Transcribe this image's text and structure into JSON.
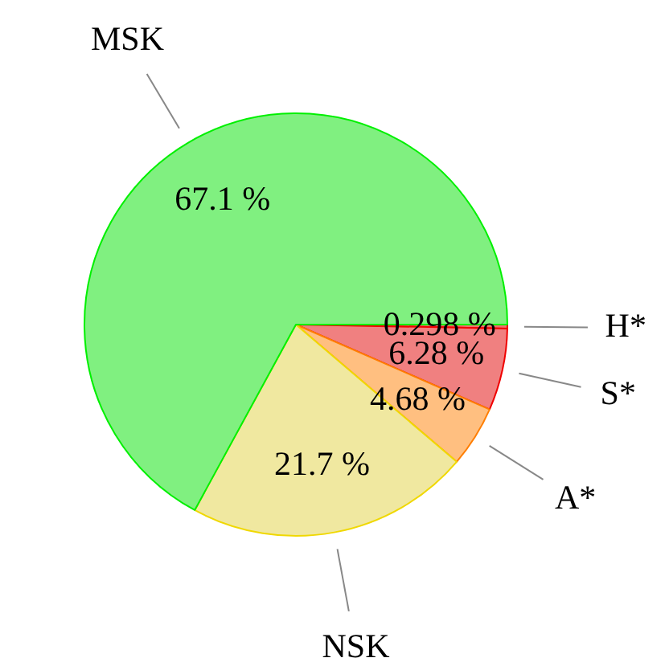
{
  "chart_data": {
    "type": "pie",
    "categories": [
      "H*",
      "S*",
      "A*",
      "NSK",
      "MSK"
    ],
    "values": [
      0.298,
      6.28,
      4.68,
      21.7,
      67.1
    ],
    "value_labels": [
      "0.298 %",
      "6.28 %",
      "4.68 %",
      "21.7 %",
      "67.1 %"
    ],
    "colors": [
      "#f07070",
      "#f08080",
      "#ffbf80",
      "#f0e8a0",
      "#80f080"
    ],
    "legend": false
  }
}
